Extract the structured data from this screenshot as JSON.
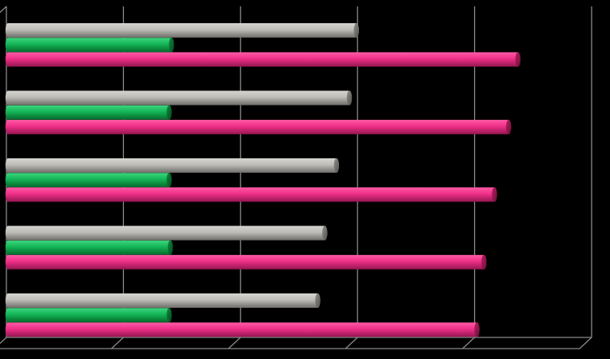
{
  "chart_data": {
    "type": "bar",
    "orientation": "horizontal",
    "categories": [
      "",
      "",
      "",
      "",
      ""
    ],
    "series": [
      {
        "color": "#a8a6a1",
        "values": [
          2.99,
          2.93,
          2.82,
          2.72,
          2.66
        ]
      },
      {
        "color": "#10b050",
        "values": [
          1.41,
          1.39,
          1.39,
          1.4,
          1.39
        ]
      },
      {
        "color": "#ec2c84",
        "values": [
          4.37,
          4.29,
          4.17,
          4.08,
          4.02
        ]
      }
    ],
    "xlim": [
      0,
      5
    ],
    "grid": true,
    "legend": "none",
    "title": "",
    "xlabel": "",
    "ylabel": ""
  }
}
